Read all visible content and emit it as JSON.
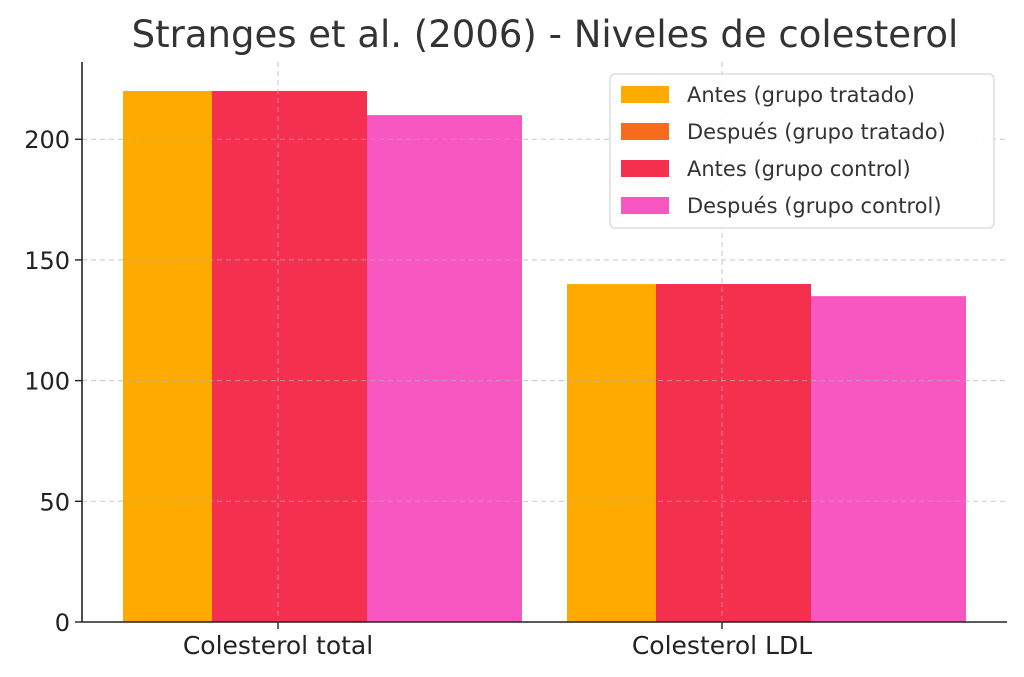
{
  "chart_data": {
    "type": "bar",
    "title": "Stranges et al. (2006) - Niveles de colesterol",
    "xlabel": "",
    "ylabel": "",
    "categories": [
      "Colesterol total",
      "Colesterol LDL"
    ],
    "series": [
      {
        "name": "Antes (grupo tratado)",
        "values": [
          220,
          140
        ],
        "color": "#FFAA00"
      },
      {
        "name": "Después (grupo tratado)",
        "values": [
          220,
          140
        ],
        "color": "#F76B1C"
      },
      {
        "name": "Antes (grupo control)",
        "values": [
          220,
          140
        ],
        "color": "#F5304F"
      },
      {
        "name": "Después (grupo control)",
        "values": [
          210,
          135
        ],
        "color": "#F857C2"
      }
    ],
    "ylim": [
      0,
      232
    ],
    "yticks": [
      "0",
      "50",
      "100",
      "150",
      "200"
    ],
    "grid": true,
    "legend": "top-right"
  }
}
